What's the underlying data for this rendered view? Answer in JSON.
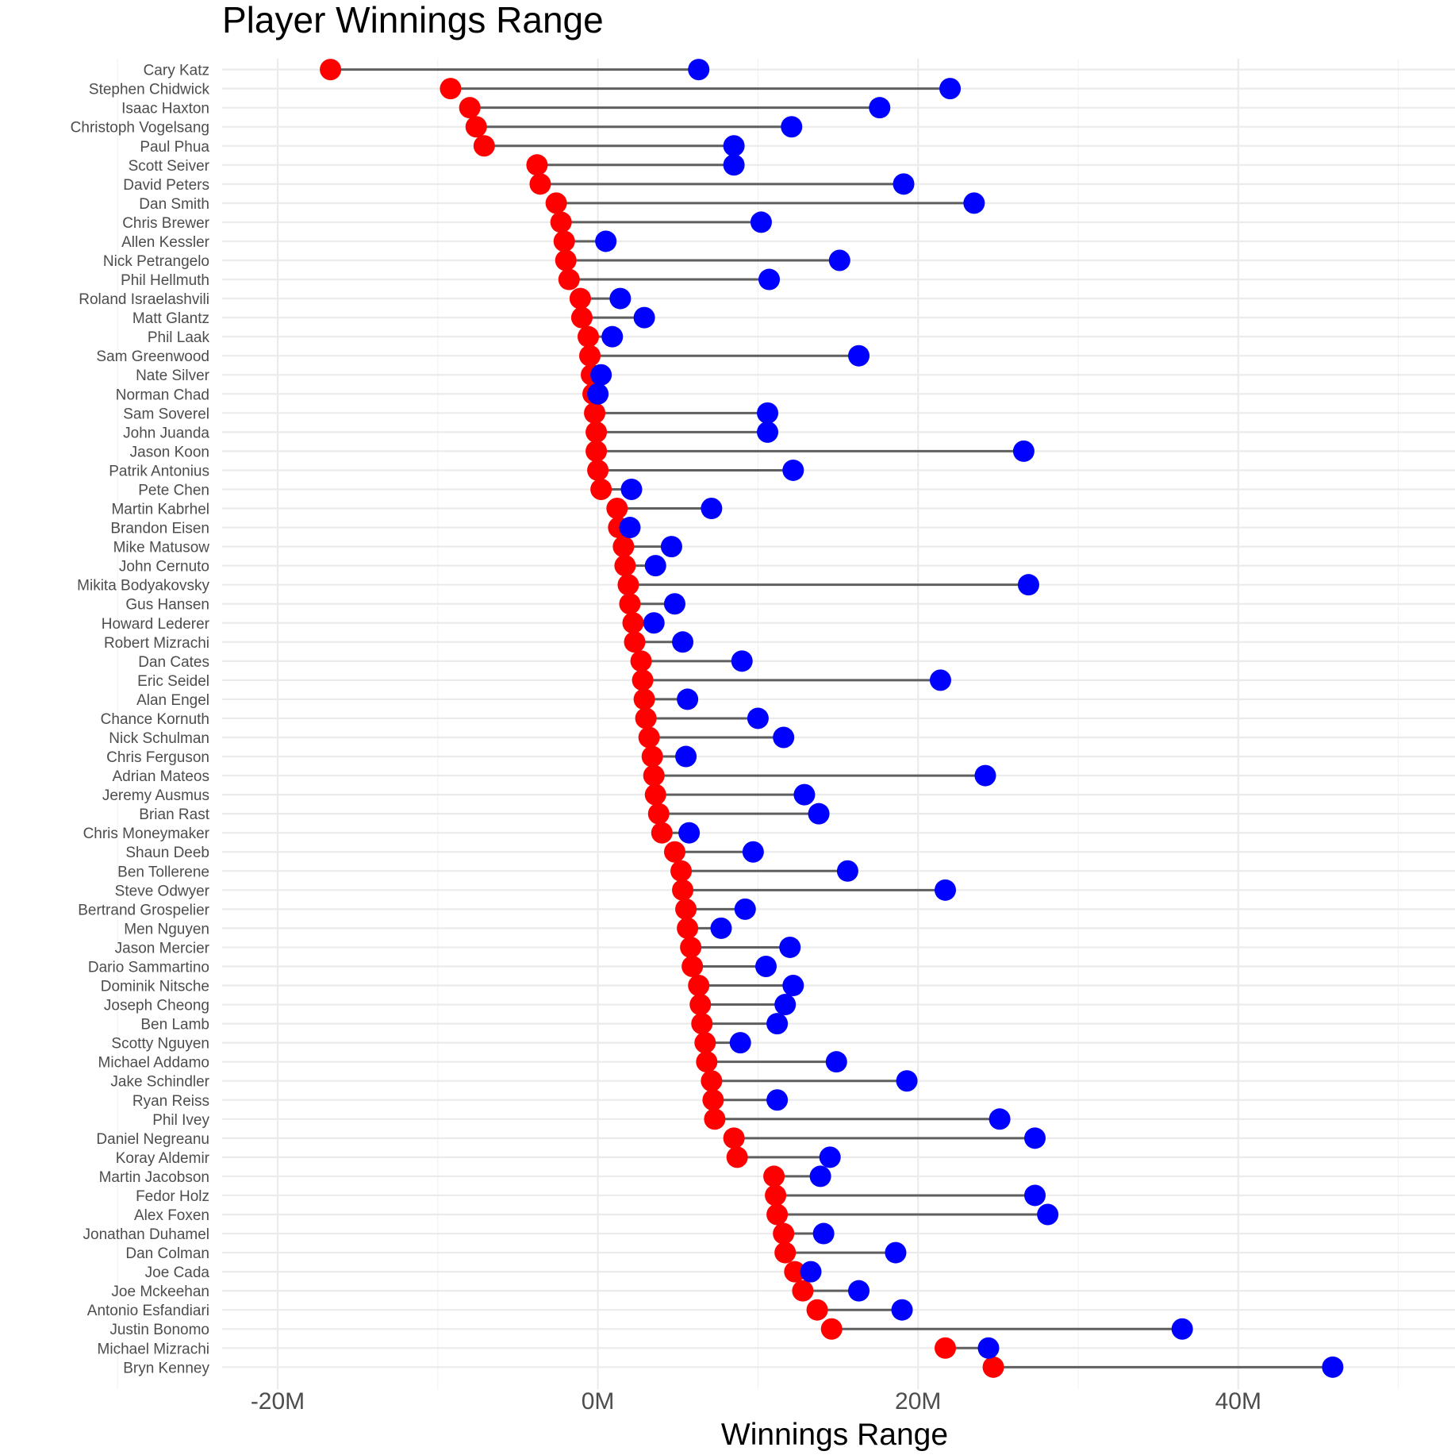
{
  "chart_data": {
    "type": "dumbbell",
    "title": "Player Winnings Range",
    "xlabel": "Winnings Range",
    "ylabel": "",
    "xlim": [
      -23.5,
      53
    ],
    "x_ticks": [
      -20,
      0,
      20,
      40
    ],
    "x_tick_labels": [
      "-20M",
      "0M",
      "20M",
      "40M"
    ],
    "units": "millions",
    "colors": {
      "min": "#ff0000",
      "max": "#0000ff",
      "segment": "#5f5f5f"
    },
    "series": [
      {
        "name": "min",
        "color": "#ff0000"
      },
      {
        "name": "max",
        "color": "#0000ff"
      }
    ],
    "players": [
      {
        "name": "Cary Katz",
        "min": -16.7,
        "max": 6.3
      },
      {
        "name": "Stephen Chidwick",
        "min": -9.2,
        "max": 22.0
      },
      {
        "name": "Isaac Haxton",
        "min": -8.0,
        "max": 17.6
      },
      {
        "name": "Christoph Vogelsang",
        "min": -7.6,
        "max": 12.1
      },
      {
        "name": "Paul Phua",
        "min": -7.1,
        "max": 8.5
      },
      {
        "name": "Scott Seiver",
        "min": -3.8,
        "max": 8.5
      },
      {
        "name": "David Peters",
        "min": -3.6,
        "max": 19.1
      },
      {
        "name": "Dan Smith",
        "min": -2.6,
        "max": 23.5
      },
      {
        "name": "Chris Brewer",
        "min": -2.3,
        "max": 10.2
      },
      {
        "name": "Allen Kessler",
        "min": -2.1,
        "max": 0.5
      },
      {
        "name": "Nick Petrangelo",
        "min": -2.0,
        "max": 15.1
      },
      {
        "name": "Phil Hellmuth",
        "min": -1.8,
        "max": 10.7
      },
      {
        "name": "Roland Israelashvili",
        "min": -1.1,
        "max": 1.4
      },
      {
        "name": "Matt Glantz",
        "min": -1.0,
        "max": 2.9
      },
      {
        "name": "Phil Laak",
        "min": -0.6,
        "max": 0.9
      },
      {
        "name": "Sam Greenwood",
        "min": -0.5,
        "max": 16.3
      },
      {
        "name": "Nate Silver",
        "min": -0.4,
        "max": 0.2
      },
      {
        "name": "Norman Chad",
        "min": -0.3,
        "max": 0.0
      },
      {
        "name": "Sam Soverel",
        "min": -0.2,
        "max": 10.6
      },
      {
        "name": "John Juanda",
        "min": -0.1,
        "max": 10.6
      },
      {
        "name": "Jason Koon",
        "min": -0.1,
        "max": 26.6
      },
      {
        "name": "Patrik Antonius",
        "min": 0.0,
        "max": 12.2
      },
      {
        "name": "Pete Chen",
        "min": 0.2,
        "max": 2.1
      },
      {
        "name": "Martin Kabrhel",
        "min": 1.2,
        "max": 7.1
      },
      {
        "name": "Brandon Eisen",
        "min": 1.3,
        "max": 2.0
      },
      {
        "name": "Mike Matusow",
        "min": 1.6,
        "max": 4.6
      },
      {
        "name": "John Cernuto",
        "min": 1.7,
        "max": 3.6
      },
      {
        "name": "Mikita Bodyakovsky",
        "min": 1.9,
        "max": 26.9
      },
      {
        "name": "Gus Hansen",
        "min": 2.0,
        "max": 4.8
      },
      {
        "name": "Howard Lederer",
        "min": 2.2,
        "max": 3.5
      },
      {
        "name": "Robert Mizrachi",
        "min": 2.3,
        "max": 5.3
      },
      {
        "name": "Dan Cates",
        "min": 2.7,
        "max": 9.0
      },
      {
        "name": "Eric Seidel",
        "min": 2.8,
        "max": 21.4
      },
      {
        "name": "Alan Engel",
        "min": 2.9,
        "max": 5.6
      },
      {
        "name": "Chance Kornuth",
        "min": 3.0,
        "max": 10.0
      },
      {
        "name": "Nick Schulman",
        "min": 3.2,
        "max": 11.6
      },
      {
        "name": "Chris Ferguson",
        "min": 3.4,
        "max": 5.5
      },
      {
        "name": "Adrian Mateos",
        "min": 3.5,
        "max": 24.2
      },
      {
        "name": "Jeremy Ausmus",
        "min": 3.6,
        "max": 12.9
      },
      {
        "name": "Brian Rast",
        "min": 3.8,
        "max": 13.8
      },
      {
        "name": "Chris Moneymaker",
        "min": 4.0,
        "max": 5.7
      },
      {
        "name": "Shaun Deeb",
        "min": 4.8,
        "max": 9.7
      },
      {
        "name": "Ben Tollerene",
        "min": 5.2,
        "max": 15.6
      },
      {
        "name": "Steve Odwyer",
        "min": 5.3,
        "max": 21.7
      },
      {
        "name": "Bertrand Grospelier",
        "min": 5.5,
        "max": 9.2
      },
      {
        "name": "Men Nguyen",
        "min": 5.6,
        "max": 7.7
      },
      {
        "name": "Jason Mercier",
        "min": 5.8,
        "max": 12.0
      },
      {
        "name": "Dario Sammartino",
        "min": 5.9,
        "max": 10.5
      },
      {
        "name": "Dominik Nitsche",
        "min": 6.3,
        "max": 12.2
      },
      {
        "name": "Joseph Cheong",
        "min": 6.4,
        "max": 11.7
      },
      {
        "name": "Ben Lamb",
        "min": 6.5,
        "max": 11.2
      },
      {
        "name": "Scotty Nguyen",
        "min": 6.7,
        "max": 8.9
      },
      {
        "name": "Michael Addamo",
        "min": 6.8,
        "max": 14.9
      },
      {
        "name": "Jake Schindler",
        "min": 7.1,
        "max": 19.3
      },
      {
        "name": "Ryan Reiss",
        "min": 7.2,
        "max": 11.2
      },
      {
        "name": "Phil Ivey",
        "min": 7.3,
        "max": 25.1
      },
      {
        "name": "Daniel Negreanu",
        "min": 8.5,
        "max": 27.3
      },
      {
        "name": "Koray Aldemir",
        "min": 8.7,
        "max": 14.5
      },
      {
        "name": "Martin Jacobson",
        "min": 11.0,
        "max": 13.9
      },
      {
        "name": "Fedor Holz",
        "min": 11.1,
        "max": 27.3
      },
      {
        "name": "Alex Foxen",
        "min": 11.2,
        "max": 28.1
      },
      {
        "name": "Jonathan Duhamel",
        "min": 11.6,
        "max": 14.1
      },
      {
        "name": "Dan Colman",
        "min": 11.7,
        "max": 18.6
      },
      {
        "name": "Joe Cada",
        "min": 12.3,
        "max": 13.3
      },
      {
        "name": "Joe Mckeehan",
        "min": 12.8,
        "max": 16.3
      },
      {
        "name": "Antonio Esfandiari",
        "min": 13.7,
        "max": 19.0
      },
      {
        "name": "Justin Bonomo",
        "min": 14.6,
        "max": 36.5
      },
      {
        "name": "Michael Mizrachi",
        "min": 21.7,
        "max": 24.4
      },
      {
        "name": "Bryn Kenney",
        "min": 24.7,
        "max": 45.9
      }
    ]
  }
}
